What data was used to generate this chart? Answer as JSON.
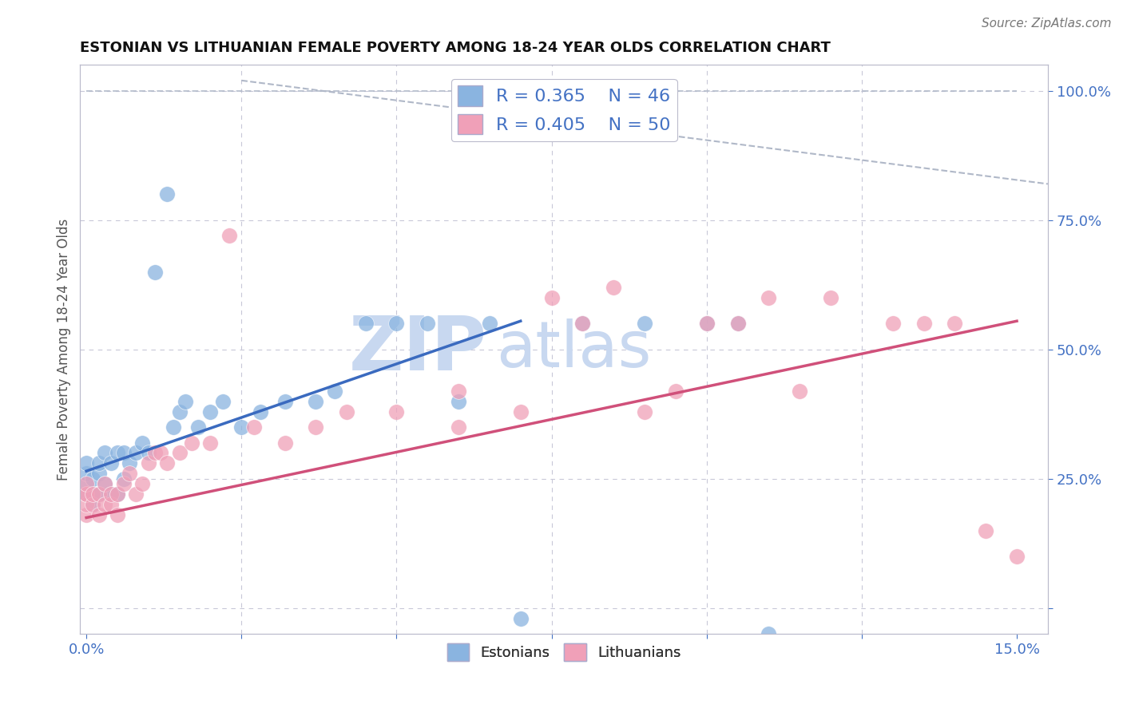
{
  "title": "ESTONIAN VS LITHUANIAN FEMALE POVERTY AMONG 18-24 YEAR OLDS CORRELATION CHART",
  "source": "Source: ZipAtlas.com",
  "ylabel": "Female Poverty Among 18-24 Year Olds",
  "xlim": [
    -0.001,
    0.155
  ],
  "ylim": [
    -0.05,
    1.05
  ],
  "yticks_right": [
    0.0,
    0.25,
    0.5,
    0.75,
    1.0
  ],
  "yticklabels_right": [
    "",
    "25.0%",
    "50.0%",
    "75.0%",
    "100.0%"
  ],
  "xtick_positions": [
    0.0,
    0.15
  ],
  "xticklabels": [
    "0.0%",
    "15.0%"
  ],
  "legend_R_estonian": "0.365",
  "legend_N_estonian": "46",
  "legend_R_lithuanian": "0.405",
  "legend_N_lithuanian": "50",
  "estonian_color": "#8ab4e0",
  "lithuanian_color": "#f0a0b8",
  "estonian_line_color": "#3a6abf",
  "lithuanian_line_color": "#d0507a",
  "reference_line_color": "#b0b8c8",
  "watermark_color": "#c8d8f0",
  "background_color": "#ffffff",
  "est_x": [
    0.0,
    0.0,
    0.0,
    0.0,
    0.001,
    0.001,
    0.001,
    0.002,
    0.002,
    0.002,
    0.003,
    0.003,
    0.004,
    0.004,
    0.005,
    0.005,
    0.006,
    0.006,
    0.007,
    0.008,
    0.009,
    0.01,
    0.011,
    0.013,
    0.014,
    0.015,
    0.016,
    0.018,
    0.02,
    0.022,
    0.025,
    0.028,
    0.032,
    0.037,
    0.04,
    0.045,
    0.05,
    0.055,
    0.06,
    0.065,
    0.07,
    0.08,
    0.09,
    0.1,
    0.105,
    0.11
  ],
  "est_y": [
    0.22,
    0.24,
    0.26,
    0.28,
    0.2,
    0.22,
    0.25,
    0.22,
    0.26,
    0.28,
    0.24,
    0.3,
    0.22,
    0.28,
    0.3,
    0.22,
    0.3,
    0.25,
    0.28,
    0.3,
    0.32,
    0.3,
    0.65,
    0.8,
    0.35,
    0.38,
    0.4,
    0.35,
    0.38,
    0.4,
    0.35,
    0.38,
    0.4,
    0.4,
    0.42,
    0.55,
    0.55,
    0.55,
    0.4,
    0.55,
    -0.02,
    0.55,
    0.55,
    0.55,
    0.55,
    -0.05
  ],
  "lit_x": [
    0.0,
    0.0,
    0.0,
    0.0,
    0.0,
    0.001,
    0.001,
    0.002,
    0.002,
    0.003,
    0.003,
    0.004,
    0.004,
    0.005,
    0.005,
    0.006,
    0.007,
    0.008,
    0.009,
    0.01,
    0.011,
    0.012,
    0.013,
    0.015,
    0.017,
    0.02,
    0.023,
    0.027,
    0.032,
    0.037,
    0.042,
    0.05,
    0.06,
    0.07,
    0.075,
    0.08,
    0.09,
    0.095,
    0.1,
    0.105,
    0.11,
    0.115,
    0.12,
    0.13,
    0.135,
    0.14,
    0.145,
    0.15,
    0.085,
    0.06
  ],
  "lit_y": [
    0.18,
    0.2,
    0.22,
    0.22,
    0.24,
    0.2,
    0.22,
    0.18,
    0.22,
    0.2,
    0.24,
    0.2,
    0.22,
    0.18,
    0.22,
    0.24,
    0.26,
    0.22,
    0.24,
    0.28,
    0.3,
    0.3,
    0.28,
    0.3,
    0.32,
    0.32,
    0.72,
    0.35,
    0.32,
    0.35,
    0.38,
    0.38,
    0.35,
    0.38,
    0.6,
    0.55,
    0.38,
    0.42,
    0.55,
    0.55,
    0.6,
    0.42,
    0.6,
    0.55,
    0.55,
    0.55,
    0.15,
    0.1,
    0.62,
    0.42
  ]
}
